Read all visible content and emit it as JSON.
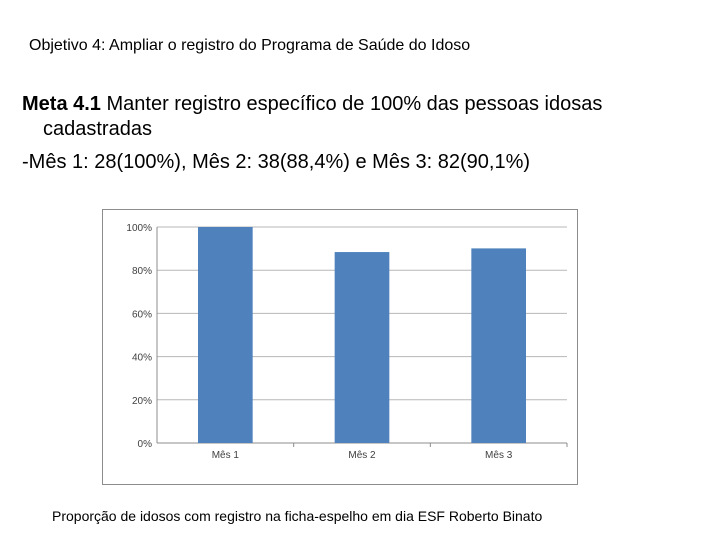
{
  "objective": "Objetivo 4: Ampliar o registro do Programa de Saúde do Idoso",
  "meta": {
    "label": "Meta 4.1",
    "text_line1": " Manter registro específico de 100% das pessoas idosas",
    "text_line2": "cadastradas",
    "months_line": "-Mês 1: 28(100%), Mês 2: 38(88,4%) e Mês 3: 82(90,1%)"
  },
  "chart_data": {
    "type": "bar",
    "categories": [
      "Mês 1",
      "Mês 2",
      "Mês 3"
    ],
    "values": [
      100,
      88.4,
      90.1
    ],
    "ylim": [
      0,
      100
    ],
    "yticks": [
      "0%",
      "20%",
      "40%",
      "60%",
      "80%",
      "100%"
    ],
    "ytick_values": [
      0,
      20,
      40,
      60,
      80,
      100
    ],
    "grid": true,
    "bar_color": "#4f81bd",
    "title": "",
    "xlabel": "",
    "ylabel": ""
  },
  "caption": "Proporção de idosos com registro na ficha-espelho em dia ESF Roberto Binato"
}
